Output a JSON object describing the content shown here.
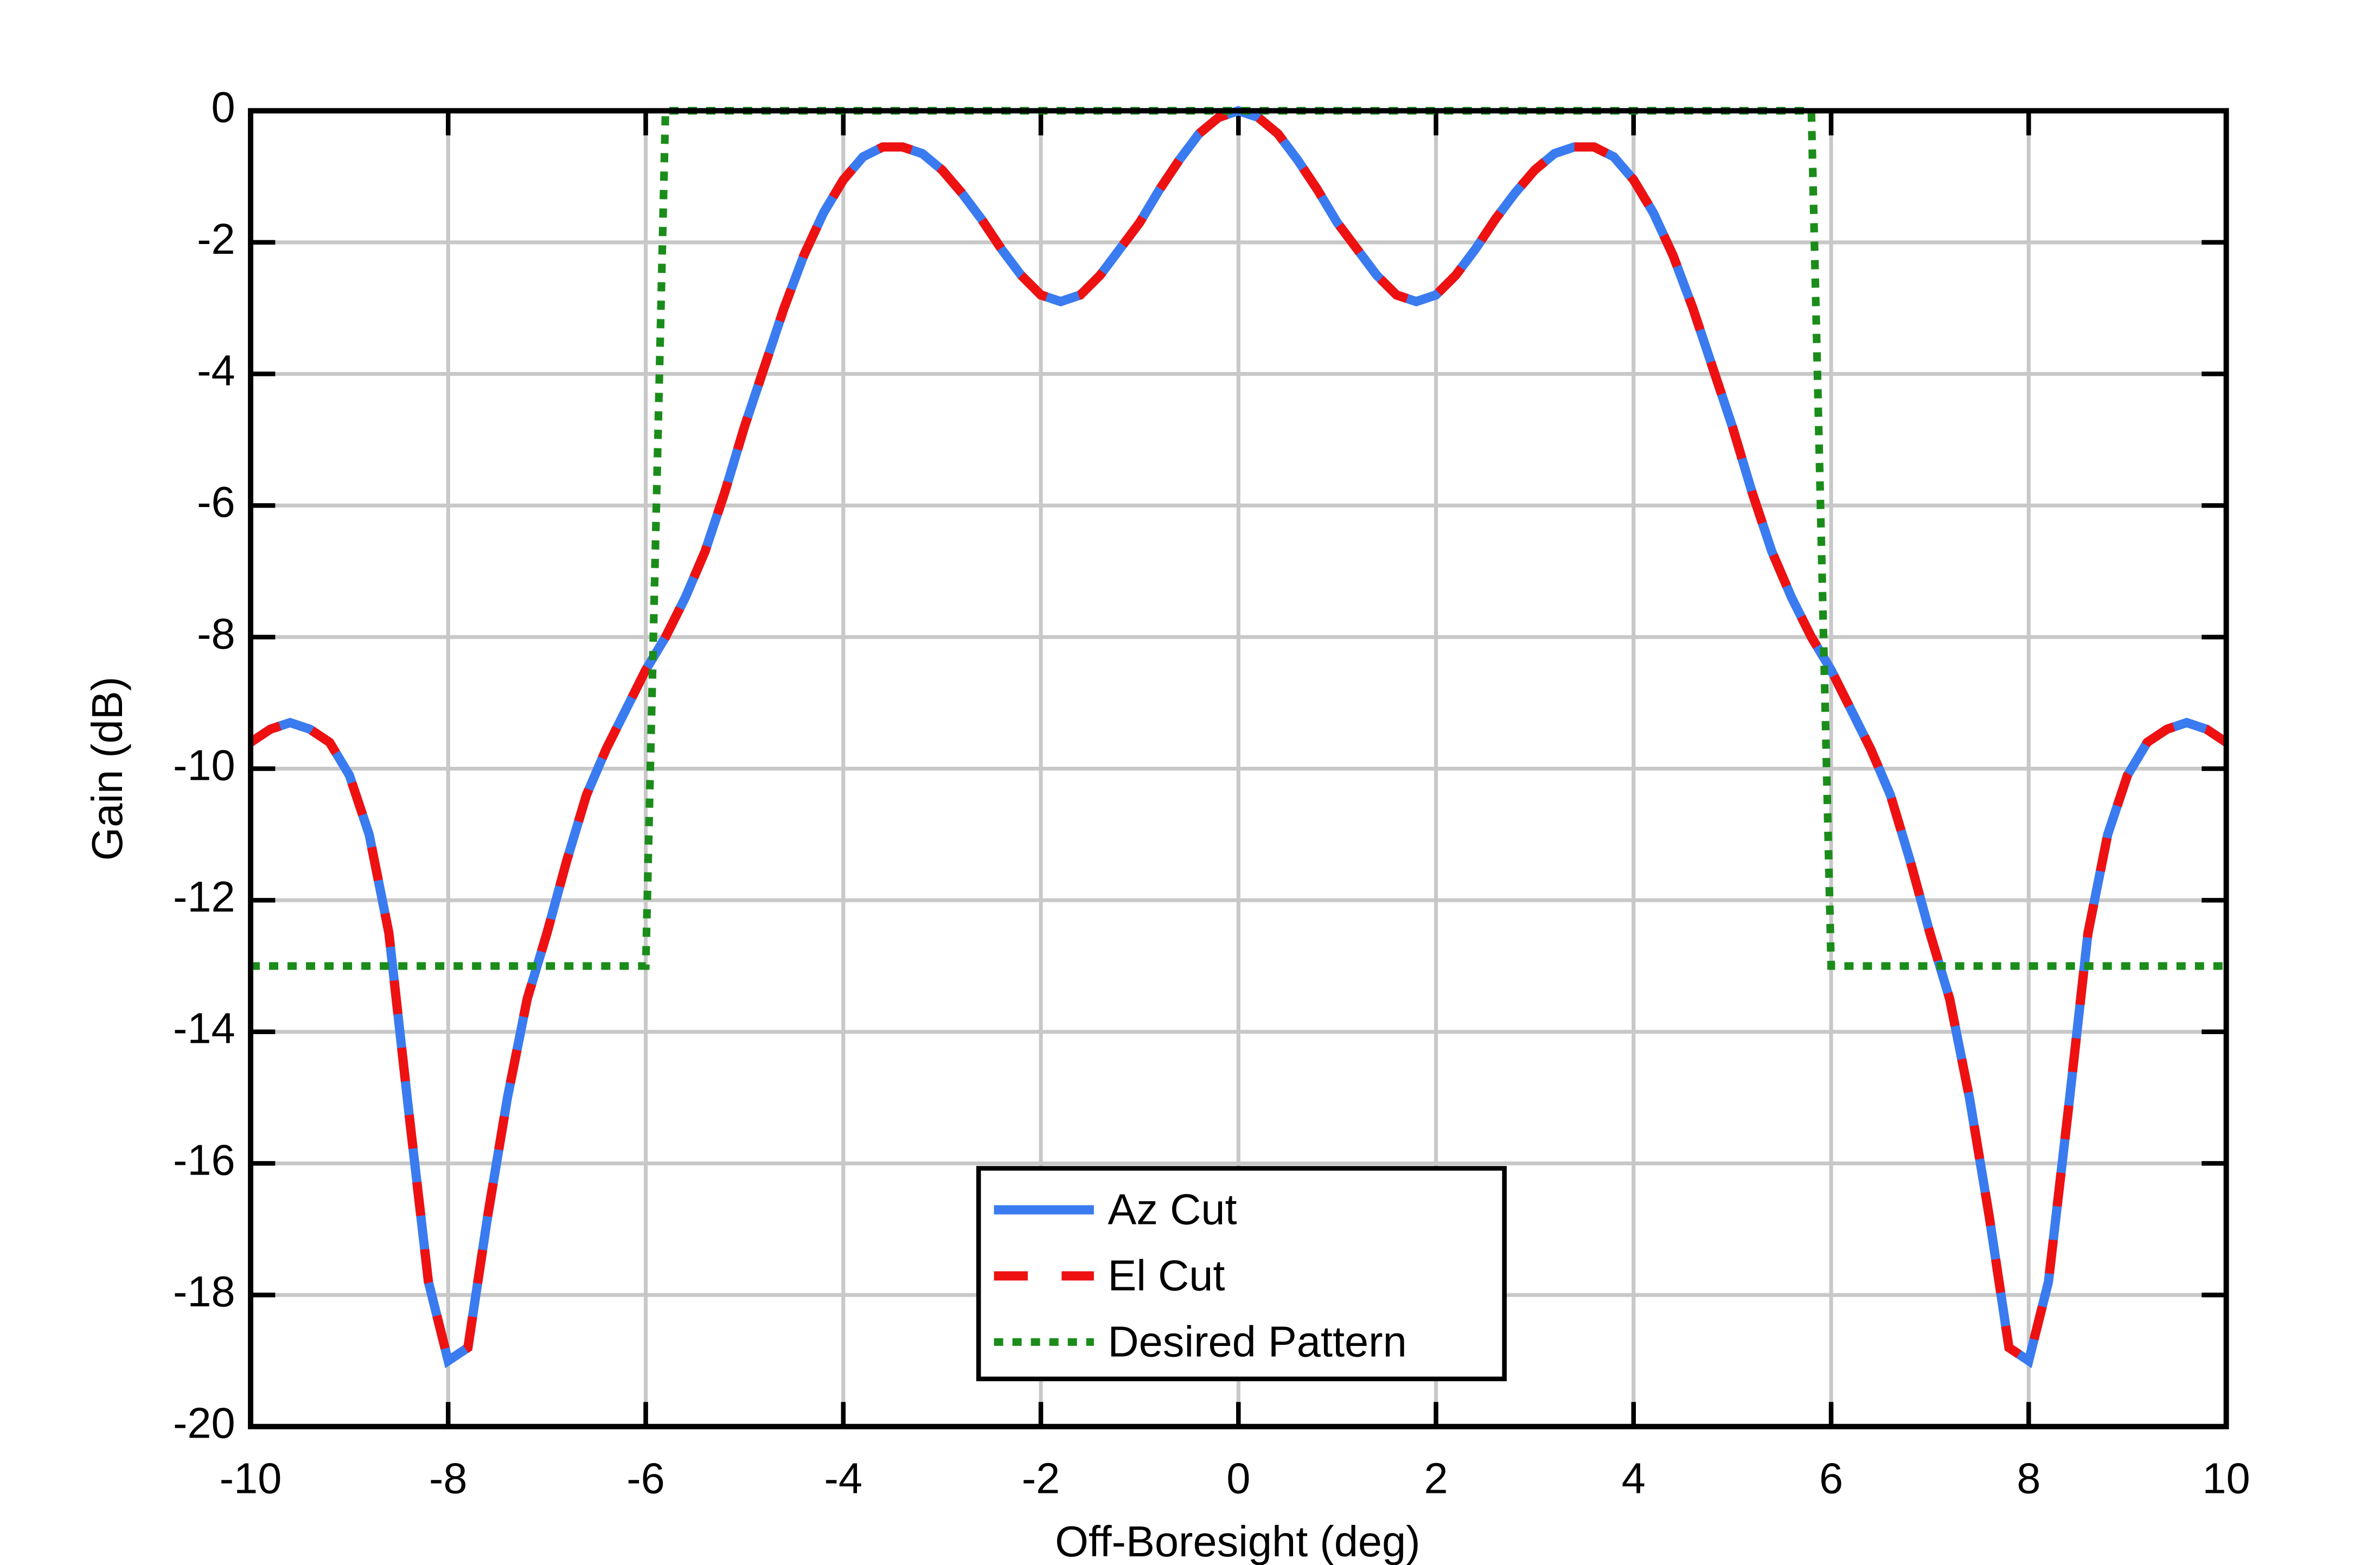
{
  "chart_data": {
    "type": "line",
    "x_label": "Off-Boresight (deg)",
    "y_label": "Gain (dB)",
    "x": [
      -10,
      -9.8,
      -9.6,
      -9.4,
      -9.2,
      -9,
      -8.8,
      -8.6,
      -8.4,
      -8.2,
      -8,
      -7.8,
      -7.6,
      -7.4,
      -7.2,
      -7,
      -6.8,
      -6.6,
      -6.4,
      -6.2,
      -6,
      -5.8,
      -5.6,
      -5.4,
      -5.2,
      -5,
      -4.8,
      -4.6,
      -4.4,
      -4.2,
      -4,
      -3.8,
      -3.6,
      -3.4,
      -3.2,
      -3,
      -2.8,
      -2.6,
      -2.4,
      -2.2,
      -2,
      -1.8,
      -1.6,
      -1.4,
      -1.2,
      -1,
      -0.8,
      -0.6,
      -0.4,
      -0.2,
      0,
      0.2,
      0.4,
      0.6,
      0.8,
      1,
      1.2,
      1.4,
      1.6,
      1.8,
      2,
      2.2,
      2.4,
      2.6,
      2.8,
      3,
      3.2,
      3.4,
      3.6,
      3.8,
      4,
      4.2,
      4.4,
      4.6,
      4.8,
      5,
      5.2,
      5.4,
      5.6,
      5.8,
      6,
      6.2,
      6.4,
      6.6,
      6.8,
      7,
      7.2,
      7.4,
      7.6,
      7.8,
      8,
      8.2,
      8.4,
      8.6,
      8.8,
      9,
      9.2,
      9.4,
      9.6,
      9.8,
      10
    ],
    "series": [
      {
        "name": "Az Cut",
        "color": "#3a7bf0",
        "style": "solid",
        "values": [
          -9.6,
          -9.4,
          -9.3,
          -9.4,
          -9.6,
          -10.1,
          -11.0,
          -12.5,
          -15.2,
          -17.8,
          -19.0,
          -18.8,
          -16.8,
          -15.0,
          -13.5,
          -12.5,
          -11.4,
          -10.4,
          -9.7,
          -9.1,
          -8.5,
          -8.0,
          -7.4,
          -6.7,
          -5.8,
          -4.8,
          -3.9,
          -3.0,
          -2.2,
          -1.55,
          -1.05,
          -0.7,
          -0.55,
          -0.55,
          -0.65,
          -0.9,
          -1.25,
          -1.65,
          -2.1,
          -2.5,
          -2.8,
          -2.9,
          -2.8,
          -2.5,
          -2.1,
          -1.7,
          -1.2,
          -0.75,
          -0.35,
          -0.1,
          0,
          -0.1,
          -0.35,
          -0.75,
          -1.2,
          -1.7,
          -2.1,
          -2.5,
          -2.8,
          -2.9,
          -2.8,
          -2.5,
          -2.1,
          -1.65,
          -1.25,
          -0.9,
          -0.65,
          -0.55,
          -0.55,
          -0.7,
          -1.05,
          -1.55,
          -2.2,
          -3.0,
          -3.9,
          -4.8,
          -5.8,
          -6.7,
          -7.4,
          -8.0,
          -8.5,
          -9.1,
          -9.7,
          -10.4,
          -11.4,
          -12.5,
          -13.5,
          -15.0,
          -16.8,
          -18.8,
          -19.0,
          -17.8,
          -15.2,
          -12.5,
          -11.0,
          -10.1,
          -9.6,
          -9.4,
          -9.3,
          -9.4,
          -9.6
        ]
      },
      {
        "name": "El Cut",
        "color": "#ee1111",
        "style": "dashed",
        "values": [
          -9.6,
          -9.4,
          -9.3,
          -9.4,
          -9.6,
          -10.1,
          -11.0,
          -12.5,
          -15.2,
          -17.8,
          -19.0,
          -18.8,
          -16.8,
          -15.0,
          -13.5,
          -12.5,
          -11.4,
          -10.4,
          -9.7,
          -9.1,
          -8.5,
          -8.0,
          -7.4,
          -6.7,
          -5.8,
          -4.8,
          -3.9,
          -3.0,
          -2.2,
          -1.55,
          -1.05,
          -0.7,
          -0.55,
          -0.55,
          -0.65,
          -0.9,
          -1.25,
          -1.65,
          -2.1,
          -2.5,
          -2.8,
          -2.9,
          -2.8,
          -2.5,
          -2.1,
          -1.7,
          -1.2,
          -0.75,
          -0.35,
          -0.1,
          0,
          -0.1,
          -0.35,
          -0.75,
          -1.2,
          -1.7,
          -2.1,
          -2.5,
          -2.8,
          -2.9,
          -2.8,
          -2.5,
          -2.1,
          -1.65,
          -1.25,
          -0.9,
          -0.65,
          -0.55,
          -0.55,
          -0.7,
          -1.05,
          -1.55,
          -2.2,
          -3.0,
          -3.9,
          -4.8,
          -5.8,
          -6.7,
          -7.4,
          -8.0,
          -8.5,
          -9.1,
          -9.7,
          -10.4,
          -11.4,
          -12.5,
          -13.5,
          -15.0,
          -16.8,
          -18.8,
          -19.0,
          -17.8,
          -15.2,
          -12.5,
          -11.0,
          -10.1,
          -9.6,
          -9.4,
          -9.3,
          -9.4,
          -9.6
        ]
      },
      {
        "name": "Desired Pattern",
        "color": "#1a8c1a",
        "style": "dotted",
        "values": [
          -13,
          -13,
          -13,
          -13,
          -13,
          -13,
          -13,
          -13,
          -13,
          -13,
          -13,
          -13,
          -13,
          -13,
          -13,
          -13,
          -13,
          -13,
          -13,
          -13,
          -13,
          0,
          0,
          0,
          0,
          0,
          0,
          0,
          0,
          0,
          0,
          0,
          0,
          0,
          0,
          0,
          0,
          0,
          0,
          0,
          0,
          0,
          0,
          0,
          0,
          0,
          0,
          0,
          0,
          0,
          0,
          0,
          0,
          0,
          0,
          0,
          0,
          0,
          0,
          0,
          0,
          0,
          0,
          0,
          0,
          0,
          0,
          0,
          0,
          0,
          0,
          0,
          0,
          0,
          0,
          0,
          0,
          0,
          0,
          0,
          -13,
          -13,
          -13,
          -13,
          -13,
          -13,
          -13,
          -13,
          -13,
          -13,
          -13,
          -13,
          -13,
          -13,
          -13,
          -13,
          -13,
          -13,
          -13,
          -13,
          -13
        ]
      }
    ],
    "xlim": [
      -10,
      10
    ],
    "ylim": [
      -20,
      0
    ],
    "xticks": [
      -10,
      -8,
      -6,
      -4,
      -2,
      0,
      2,
      4,
      6,
      8,
      10
    ],
    "yticks": [
      0,
      -2,
      -4,
      -6,
      -8,
      -10,
      -12,
      -14,
      -16,
      -18,
      -20
    ],
    "grid": true,
    "legend": "lower center"
  }
}
